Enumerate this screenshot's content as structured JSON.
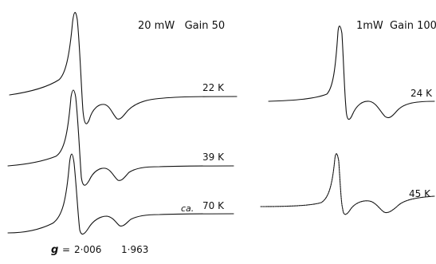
{
  "left_panel": {
    "header": "20 mW   Gain 50",
    "traces": [
      {
        "label": "22 K",
        "label_style": "plain"
      },
      {
        "label": "39 K",
        "label_style": "plain"
      },
      {
        "label_prefix": "ca.",
        "label": "70 K",
        "label_style": "prefixed"
      }
    ],
    "g_markers": {
      "symbol": "g",
      "eq": "=",
      "v1": "2·006",
      "v2": "1·963"
    }
  },
  "right_panel": {
    "header": "1mW  Gain 100",
    "traces": [
      {
        "label": "24 K"
      },
      {
        "label": "45 K"
      }
    ]
  }
}
